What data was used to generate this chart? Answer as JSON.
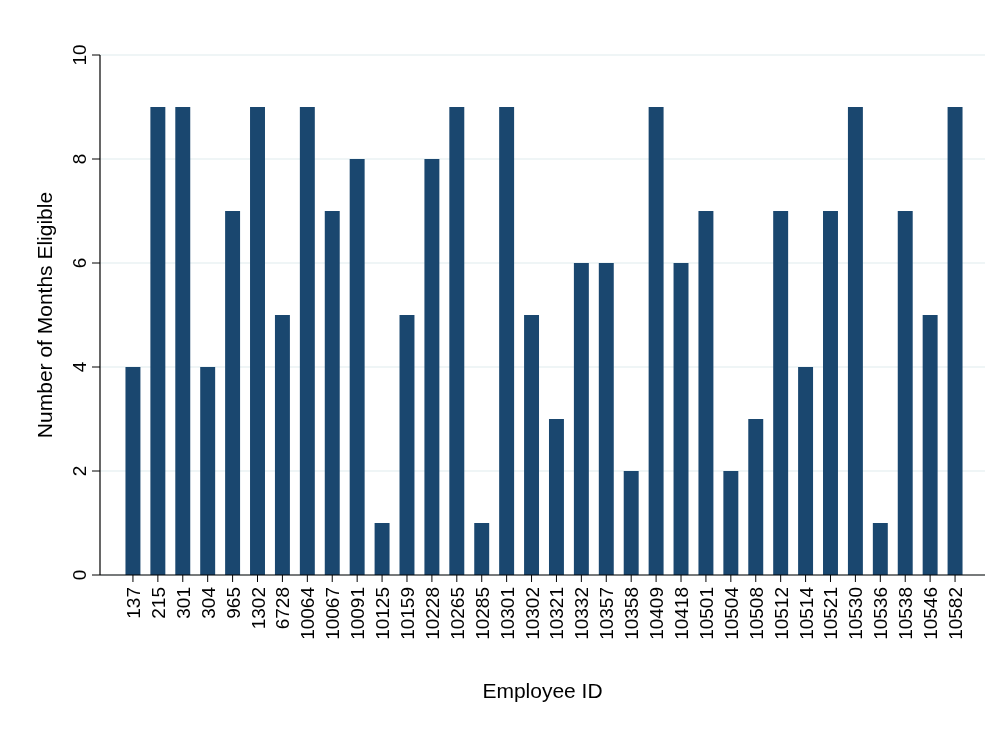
{
  "chart_data": {
    "type": "bar",
    "xlabel": "Employee ID",
    "ylabel": "Number of Months Eligible",
    "categories": [
      "137",
      "215",
      "301",
      "304",
      "965",
      "1302",
      "6728",
      "10064",
      "10067",
      "10091",
      "10125",
      "10159",
      "10228",
      "10265",
      "10285",
      "10301",
      "10302",
      "10321",
      "10332",
      "10357",
      "10358",
      "10409",
      "10418",
      "10501",
      "10504",
      "10508",
      "10512",
      "10514",
      "10521",
      "10530",
      "10536",
      "10538",
      "10546",
      "10582"
    ],
    "values": [
      4,
      9,
      9,
      4,
      7,
      9,
      5,
      9,
      7,
      8,
      1,
      5,
      8,
      9,
      1,
      9,
      5,
      3,
      6,
      6,
      2,
      9,
      6,
      7,
      2,
      3,
      7,
      4,
      7,
      9,
      1,
      7,
      5,
      9
    ],
    "color": "#1a476f",
    "ylim": [
      0,
      10
    ],
    "yticks": [
      0,
      2,
      4,
      6,
      8,
      10
    ],
    "grid": "y"
  }
}
